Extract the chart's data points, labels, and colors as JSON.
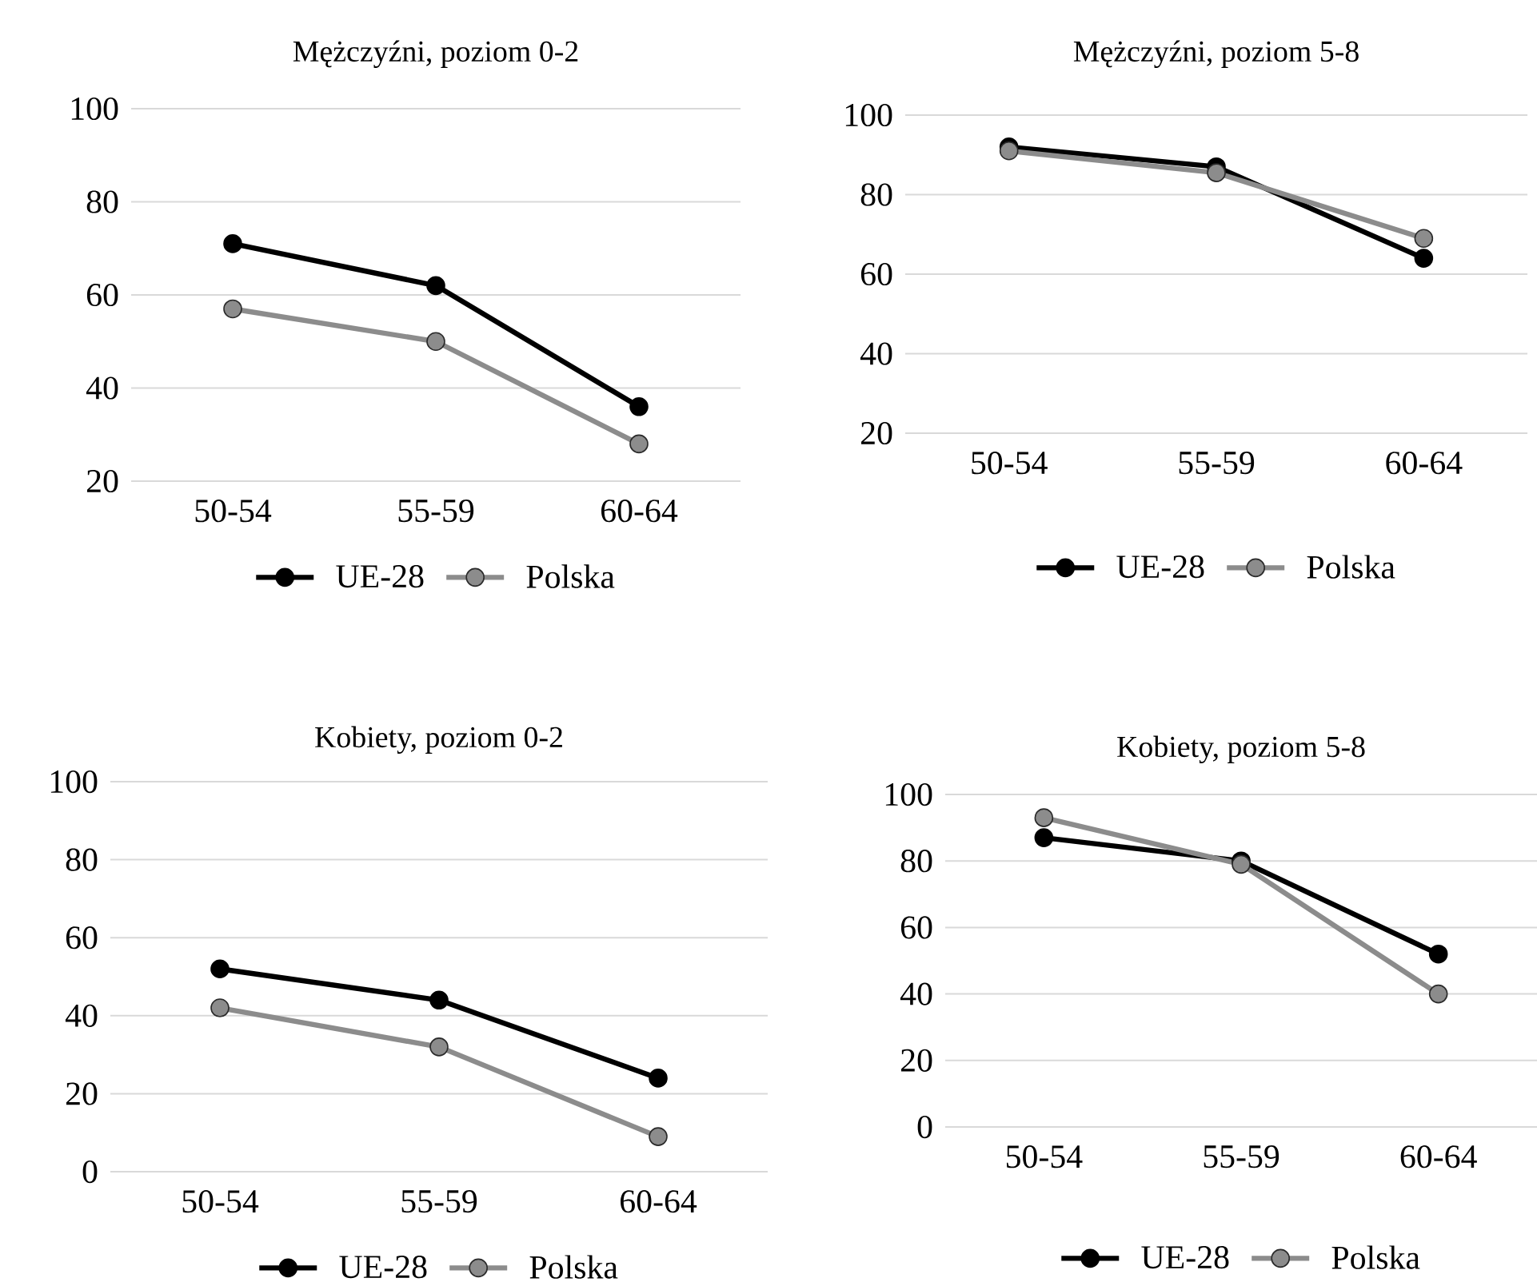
{
  "chart_data": [
    {
      "type": "line",
      "title": "Mężczyźni, poziom 0-2",
      "categories": [
        "50-54",
        "55-59",
        "60-64"
      ],
      "ylim": [
        20,
        100
      ],
      "yticks": [
        20,
        40,
        60,
        80,
        100
      ],
      "grid": "y",
      "legend": "bottom",
      "marker": "circle",
      "series": [
        {
          "name": "UE-28",
          "color": "#000000",
          "values": [
            71,
            62,
            36
          ]
        },
        {
          "name": "Polska",
          "color": "#8c8c8c",
          "values": [
            57,
            50,
            28
          ]
        }
      ]
    },
    {
      "type": "line",
      "title": "Mężczyźni, poziom 5-8",
      "categories": [
        "50-54",
        "55-59",
        "60-64"
      ],
      "ylim": [
        20,
        100
      ],
      "yticks": [
        20,
        40,
        60,
        80,
        100
      ],
      "grid": "y",
      "legend": "bottom",
      "marker": "circle",
      "series": [
        {
          "name": "UE-28",
          "color": "#000000",
          "values": [
            92,
            87,
            64
          ]
        },
        {
          "name": "Polska",
          "color": "#8c8c8c",
          "values": [
            91,
            85.5,
            69
          ]
        }
      ]
    },
    {
      "type": "line",
      "title": "Kobiety, poziom 0-2",
      "categories": [
        "50-54",
        "55-59",
        "60-64"
      ],
      "ylim": [
        0,
        100
      ],
      "yticks": [
        0,
        20,
        40,
        60,
        80,
        100
      ],
      "grid": "y",
      "legend": "bottom",
      "marker": "circle",
      "series": [
        {
          "name": "UE-28",
          "color": "#000000",
          "values": [
            52,
            44,
            24
          ]
        },
        {
          "name": "Polska",
          "color": "#8c8c8c",
          "values": [
            42,
            32,
            9
          ]
        }
      ]
    },
    {
      "type": "line",
      "title": "Kobiety, poziom 5-8",
      "categories": [
        "50-54",
        "55-59",
        "60-64"
      ],
      "ylim": [
        0,
        100
      ],
      "yticks": [
        0,
        20,
        40,
        60,
        80,
        100
      ],
      "grid": "y",
      "legend": "bottom",
      "marker": "circle",
      "series": [
        {
          "name": "UE-28",
          "color": "#000000",
          "values": [
            87,
            80,
            52
          ]
        },
        {
          "name": "Polska",
          "color": "#8c8c8c",
          "values": [
            93,
            79,
            40
          ]
        }
      ]
    }
  ]
}
